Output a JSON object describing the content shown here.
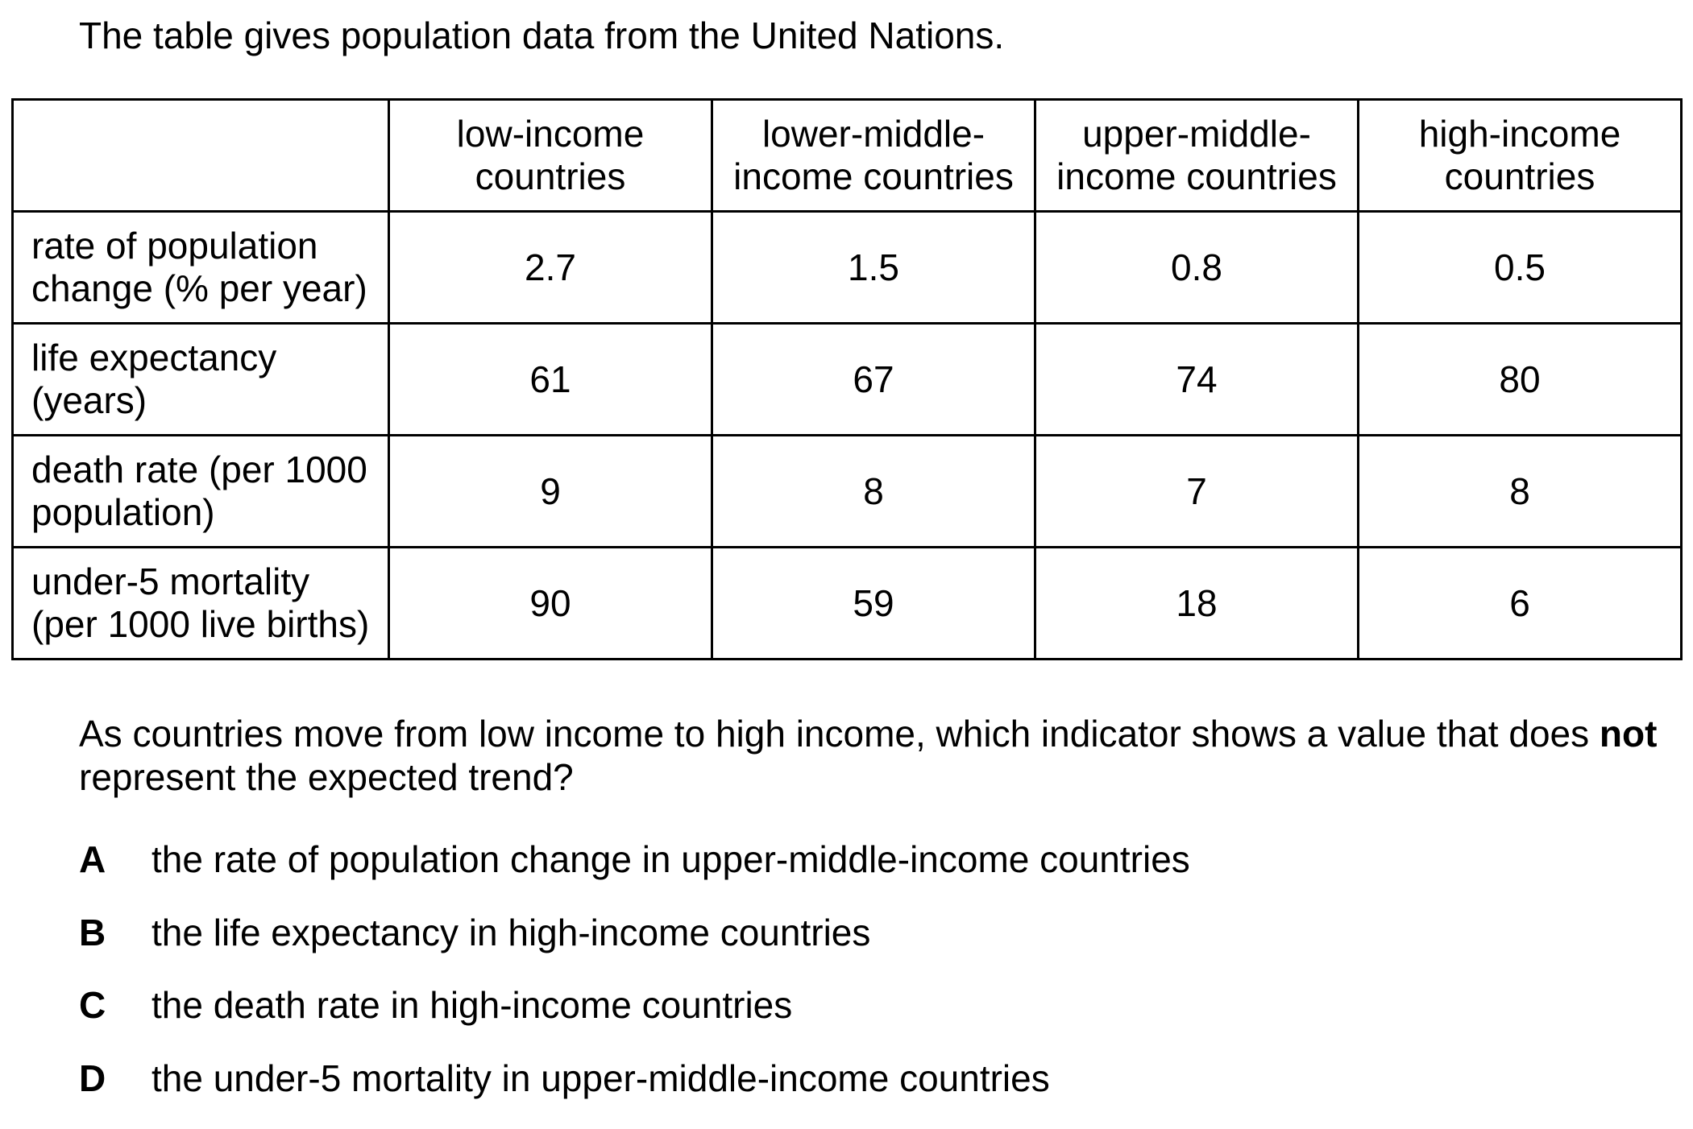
{
  "intro": "The table gives population data from the United Nations.",
  "table": {
    "headers": [
      "",
      "low-income countries",
      "lower-middle-income countries",
      "upper-middle-income countries",
      "high-income countries"
    ],
    "header_lines": [
      [
        "",
        ""
      ],
      [
        "low-income",
        "countries"
      ],
      [
        "lower-middle-",
        "income countries"
      ],
      [
        "upper-middle-",
        "income countries"
      ],
      [
        "high-income",
        "countries"
      ]
    ],
    "rows": [
      {
        "label_lines": [
          "rate of population",
          "change (% per year)"
        ],
        "values": [
          "2.7",
          "1.5",
          "0.8",
          "0.5"
        ]
      },
      {
        "label_lines": [
          "life expectancy",
          "(years)"
        ],
        "values": [
          "61",
          "67",
          "74",
          "80"
        ]
      },
      {
        "label_lines": [
          "death rate (per 1000",
          "population)"
        ],
        "values": [
          "9",
          "8",
          "7",
          "8"
        ]
      },
      {
        "label_lines": [
          "under-5 mortality",
          "(per 1000 live births)"
        ],
        "values": [
          "90",
          "59",
          "18",
          "6"
        ]
      }
    ]
  },
  "question": {
    "text_before": "As countries move from low income to high income, which indicator shows a value that does ",
    "emphasis": "not",
    "text_after": "represent the expected trend?"
  },
  "options": [
    {
      "letter": "A",
      "text": "the rate of population change in upper-middle-income countries"
    },
    {
      "letter": "B",
      "text": "the life expectancy in high-income countries"
    },
    {
      "letter": "C",
      "text": "the death rate in high-income countries"
    },
    {
      "letter": "D",
      "text": "the under-5 mortality in upper-middle-income countries"
    }
  ]
}
